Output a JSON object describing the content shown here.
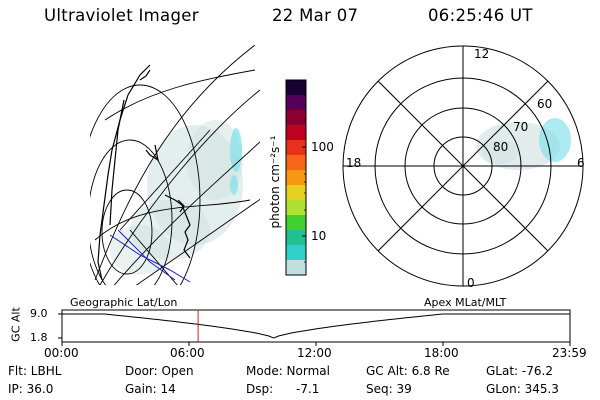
{
  "header": {
    "instrument": "Ultraviolet Imager",
    "date": "22 Mar 07",
    "time": "06:25:46 UT"
  },
  "colorbar": {
    "unit_label": "photon cm⁻²s⁻¹",
    "ticks": [
      "100",
      "10"
    ],
    "colors_top_to_bottom": [
      "#1a0033",
      "#55005c",
      "#8a0030",
      "#c00020",
      "#e8301a",
      "#f5661a",
      "#f59a10",
      "#e8d020",
      "#b0e030",
      "#40d030",
      "#20c090",
      "#30d0c8",
      "#c0e0e0"
    ]
  },
  "polar_plot": {
    "hour_labels": {
      "top": "12",
      "left": "18",
      "right": "6",
      "bottom": "0"
    },
    "lat_labels": [
      "60",
      "70",
      "80"
    ]
  },
  "timeline": {
    "ylabel": "GC Alt",
    "yticks": [
      "9.0",
      "1.8"
    ],
    "left_title": "Geographic Lat/Lon",
    "right_title": "Apex MLat/MLT",
    "xticks": [
      "00:00",
      "06:00",
      "12:00",
      "18:00",
      "23:59"
    ],
    "current_marker_hours": 6.43
  },
  "status": {
    "flt": "Flt: LBHL",
    "ip": "IP: 36.0",
    "door": "Door: Open",
    "gain": "Gain: 14",
    "mode": "Mode: Normal",
    "dsp": "Dsp:",
    "dsp_val": "-7.1",
    "gcalt": "GC Alt: 6.8 Re",
    "seq": "Seq: 39",
    "glat": "GLat: -76.2",
    "glon": "GLon: 345.3"
  }
}
